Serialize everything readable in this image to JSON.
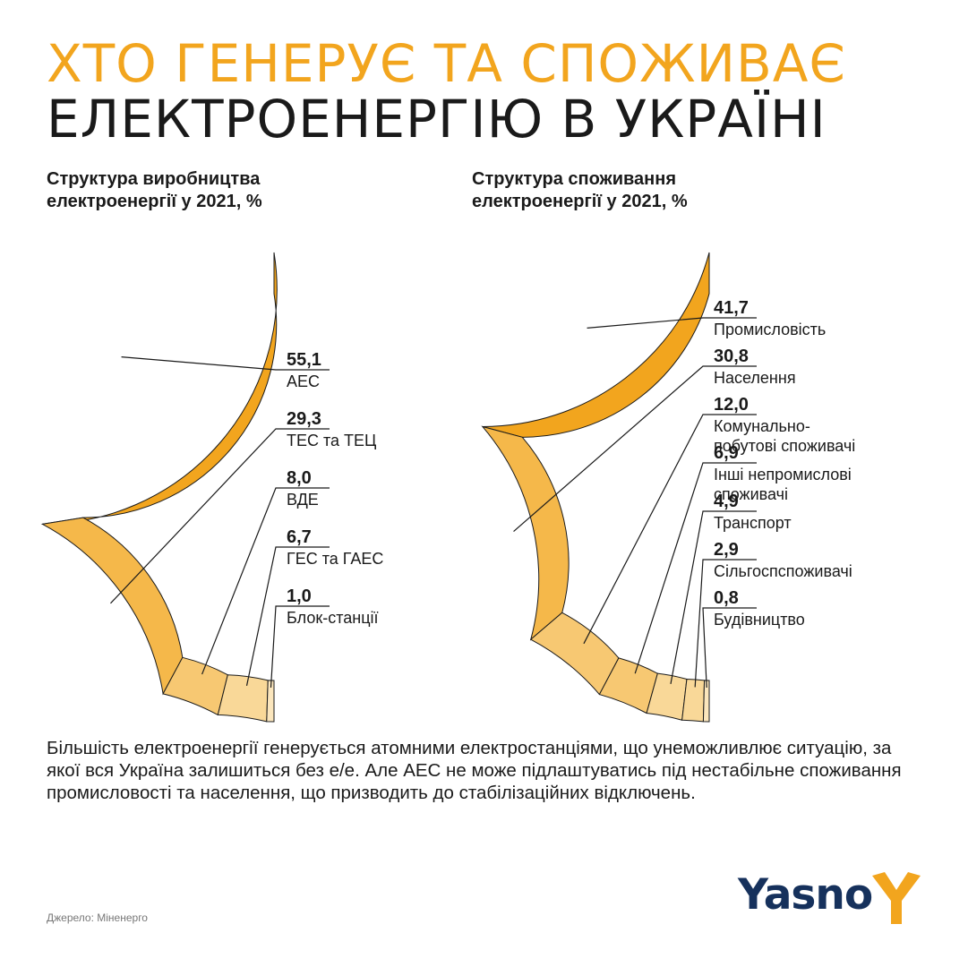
{
  "header": {
    "title_line1": "ХТО ГЕНЕРУЄ ТА СПОЖИВАЄ",
    "title_line2": "ЕЛЕКТРОЕНЕРГІЮ В УКРАЇНІ"
  },
  "colors": {
    "accent": "#f2a51e",
    "dark": "#1a1a1a",
    "shades": [
      "#f2a51e",
      "#f5b84a",
      "#f7c872",
      "#f9d898",
      "#fbe6bd"
    ]
  },
  "chart_data": [
    {
      "type": "pie",
      "shape": "half-donut",
      "title": "Структура виробництва",
      "title_line2": "електроенергії у 2021, %",
      "labels": [
        "АЕС",
        "ТЕС та ТЕЦ",
        "ВДЕ",
        "ГЕС та ГАЕС",
        "Блок-станції"
      ],
      "values": [
        55.1,
        29.3,
        8.0,
        6.7,
        1.0
      ],
      "value_labels": [
        "55,1",
        "29,3",
        "8,0",
        "6,7",
        "1,0"
      ]
    },
    {
      "type": "pie",
      "shape": "half-donut",
      "title": "Структура споживання",
      "title_line2": "електроенергії у 2021, %",
      "labels": [
        "Промисловість",
        "Населення",
        "Комунально-\nпобутові споживачі",
        "Інші непромислові\nспоживачі",
        "Транспорт",
        "Сільгоспспоживачі",
        "Будівництво"
      ],
      "values": [
        41.7,
        30.8,
        12.0,
        6.9,
        4.9,
        2.9,
        0.8
      ],
      "value_labels": [
        "41,7",
        "30,8",
        "12,0",
        "6,9",
        "4,9",
        "2,9",
        "0,8"
      ]
    }
  ],
  "body_text": "Більшість електроенергії генерується атомними електростанціями, що унеможливлює ситуацію, за якої вся Україна залишиться без е/е. Але АЕС не може підлаштуватись під нестабільне споживання промисловості та населення, що призводить до стабілізаційних відключень.",
  "source": "Джерело: Міненерго",
  "logo": {
    "text": "Yasno",
    "icon": "yasno-y-icon"
  }
}
